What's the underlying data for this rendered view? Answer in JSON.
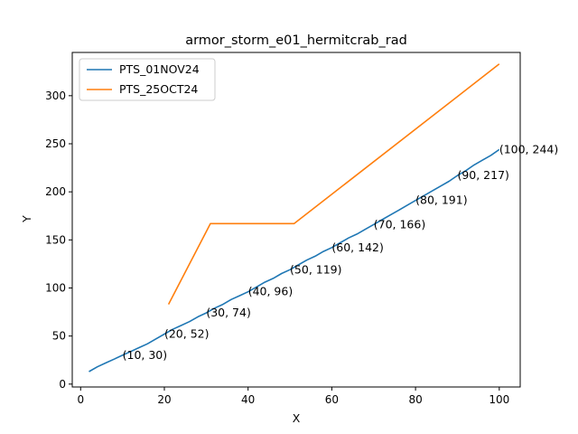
{
  "chart_data": {
    "type": "line",
    "title": "armor_storm_e01_hermitcrab_rad",
    "xlabel": "X",
    "ylabel": "Y",
    "xlim": [
      -2,
      105
    ],
    "ylim": [
      -3,
      345
    ],
    "xticks": [
      0,
      20,
      40,
      60,
      80,
      100
    ],
    "yticks": [
      0,
      50,
      100,
      150,
      200,
      250,
      300
    ],
    "grid": false,
    "legend": "top-left",
    "series": [
      {
        "name": "PTS_01NOV24",
        "color": "#1f77b4",
        "x": [
          2,
          4,
          6,
          8,
          10,
          12,
          14,
          16,
          18,
          20,
          22,
          24,
          26,
          28,
          30,
          32,
          34,
          36,
          38,
          40,
          42,
          44,
          46,
          48,
          50,
          52,
          54,
          56,
          58,
          60,
          62,
          64,
          66,
          68,
          70,
          72,
          74,
          76,
          78,
          80,
          82,
          84,
          86,
          88,
          90,
          92,
          94,
          96,
          98,
          100
        ],
        "y": [
          13,
          18,
          22,
          26,
          30,
          34,
          38,
          42,
          47,
          52,
          57,
          61,
          65,
          70,
          74,
          79,
          83,
          88,
          92,
          96,
          101,
          106,
          110,
          115,
          119,
          124,
          129,
          133,
          138,
          142,
          147,
          152,
          156,
          161,
          166,
          171,
          176,
          181,
          186,
          191,
          196,
          201,
          206,
          211,
          217,
          222,
          228,
          233,
          238,
          244
        ]
      },
      {
        "name": "PTS_25OCT24",
        "color": "#ff7f0e",
        "x": [
          21,
          31,
          51,
          100
        ],
        "y": [
          83,
          167,
          167,
          333
        ]
      }
    ],
    "annotations": [
      {
        "text": "(10, 30)",
        "x": 10,
        "y": 30
      },
      {
        "text": "(20, 52)",
        "x": 20,
        "y": 52
      },
      {
        "text": "(30, 74)",
        "x": 30,
        "y": 74
      },
      {
        "text": "(40, 96)",
        "x": 40,
        "y": 96
      },
      {
        "text": "(50, 119)",
        "x": 50,
        "y": 119
      },
      {
        "text": "(60, 142)",
        "x": 60,
        "y": 142
      },
      {
        "text": "(70, 166)",
        "x": 70,
        "y": 166
      },
      {
        "text": "(80, 191)",
        "x": 80,
        "y": 191
      },
      {
        "text": "(90, 217)",
        "x": 90,
        "y": 217
      },
      {
        "text": "(100, 244)",
        "x": 100,
        "y": 244
      }
    ]
  }
}
